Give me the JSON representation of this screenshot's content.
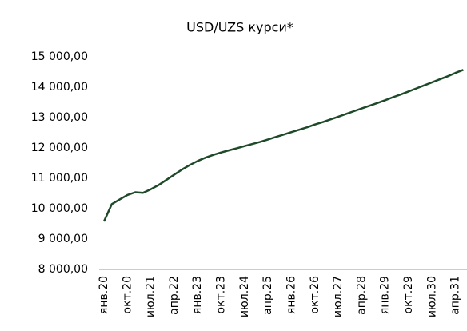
{
  "chart_data": {
    "type": "line",
    "title": "USD/UZS курси*",
    "categories": [
      "янв.20",
      null,
      null,
      "окт.20",
      null,
      null,
      "июл.21",
      null,
      null,
      "апр.22",
      null,
      null,
      "янв.23",
      null,
      null,
      "окт.23",
      null,
      null,
      "июл.24",
      null,
      null,
      "апр.25",
      null,
      null,
      "янв.26",
      null,
      null,
      "окт.26",
      null,
      null,
      "июл.27",
      null,
      null,
      "апр.28",
      null,
      null,
      "янв.29",
      null,
      null,
      "окт.29",
      null,
      null,
      "июл.30",
      null,
      null,
      "апр.31",
      null
    ],
    "series": [
      {
        "name": "USD/UZS",
        "color": "#1f4a2a",
        "values": [
          9580,
          10150,
          10300,
          10450,
          10540,
          10520,
          10640,
          10780,
          10950,
          11120,
          11290,
          11440,
          11570,
          11680,
          11770,
          11850,
          11920,
          11990,
          12060,
          12130,
          12200,
          12280,
          12360,
          12440,
          12520,
          12600,
          12680,
          12770,
          12850,
          12940,
          13030,
          13120,
          13210,
          13300,
          13390,
          13480,
          13570,
          13670,
          13760,
          13860,
          13960,
          14060,
          14160,
          14260,
          14360,
          14470,
          14570
        ]
      }
    ],
    "ylim": [
      8000,
      15000
    ],
    "yticks": [
      {
        "value": 8000,
        "label": "8 000,00"
      },
      {
        "value": 9000,
        "label": "9 000,00"
      },
      {
        "value": 10000,
        "label": "10 000,00"
      },
      {
        "value": 11000,
        "label": "11 000,00"
      },
      {
        "value": 12000,
        "label": "12 000,00"
      },
      {
        "value": 13000,
        "label": "13 000,00"
      },
      {
        "value": 14000,
        "label": "14 000,00"
      },
      {
        "value": 15000,
        "label": "15 000,00"
      }
    ],
    "grid": false
  }
}
